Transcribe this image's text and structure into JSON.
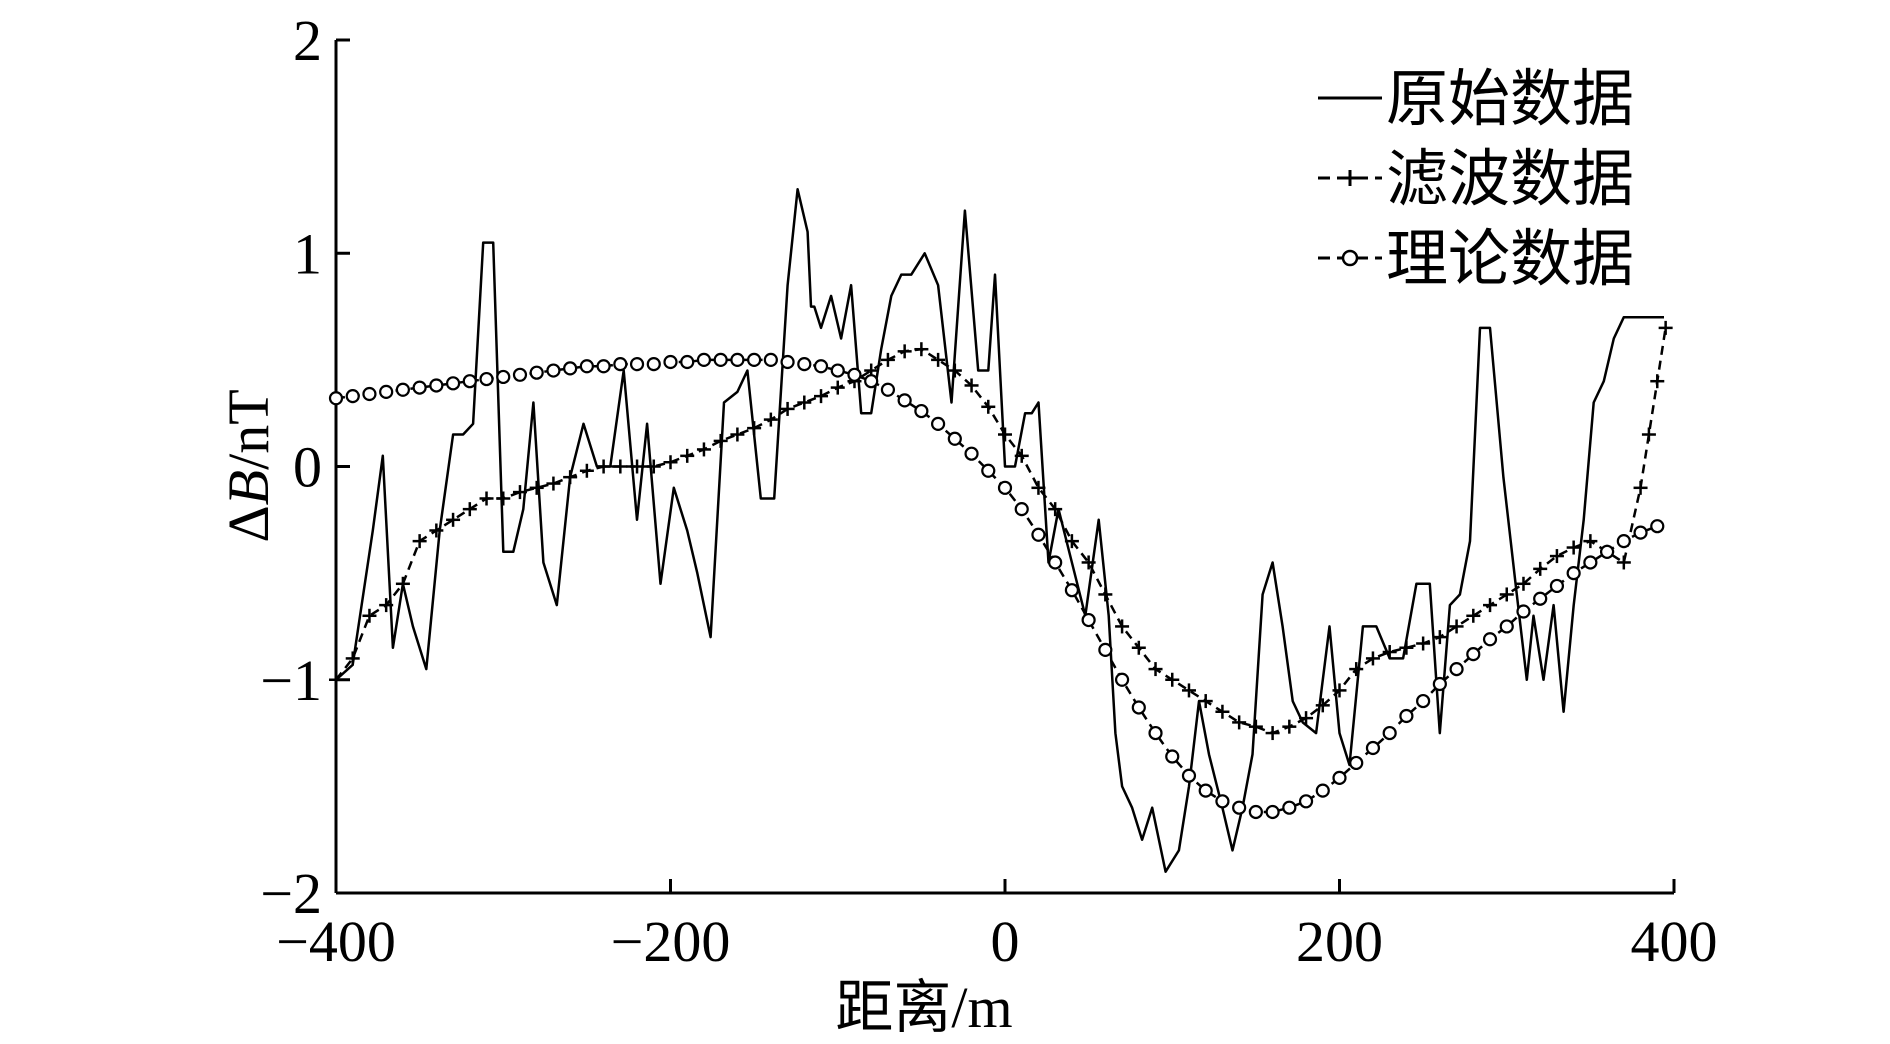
{
  "chart_data": {
    "type": "line",
    "xlabel": "距离/m",
    "ylabel_prefix": "Δ",
    "ylabel_var": "B",
    "ylabel_unit": "/nT",
    "xlim": [
      -400,
      400
    ],
    "ylim": [
      -2,
      2
    ],
    "x_ticks": [
      -400,
      -200,
      0,
      200,
      400
    ],
    "x_tick_labels": [
      "−400",
      "−200",
      "0",
      "200",
      "400"
    ],
    "y_ticks": [
      -2,
      -1,
      0,
      1,
      2
    ],
    "y_tick_labels": [
      "−2",
      "−1",
      "0",
      "1",
      "2"
    ],
    "grid": false,
    "legend_position": "top-right",
    "series": [
      {
        "name": "原始数据",
        "style": "solid",
        "marker": "none",
        "color": "#000000",
        "x": [
          -400,
          -390,
          -378,
          -372,
          -366,
          -360,
          -354,
          -346,
          -338,
          -330,
          -324,
          -318,
          -312,
          -306,
          -300,
          -294,
          -288,
          -282,
          -276,
          -268,
          -260,
          -252,
          -244,
          -236,
          -228,
          -220,
          -214,
          -206,
          -198,
          -190,
          -184,
          -176,
          -168,
          -160,
          -154,
          -146,
          -138,
          -130,
          -124,
          -118,
          -116,
          -114,
          -110,
          -104,
          -98,
          -92,
          -86,
          -80,
          -74,
          -68,
          -62,
          -56,
          -48,
          -40,
          -32,
          -24,
          -16,
          -10,
          -6,
          0,
          6,
          12,
          16,
          20,
          26,
          32,
          40,
          48,
          56,
          62,
          66,
          70,
          76,
          82,
          88,
          96,
          104,
          110,
          116,
          122,
          130,
          136,
          142,
          148,
          154,
          160,
          166,
          172,
          178,
          186,
          194,
          200,
          206,
          214,
          222,
          230,
          238,
          246,
          254,
          260,
          266,
          272,
          278,
          284,
          290,
          298,
          306,
          312,
          316,
          322,
          328,
          334,
          340,
          346,
          352,
          358,
          364,
          370,
          376,
          382,
          388,
          394
        ],
        "y": [
          -1.0,
          -0.93,
          -0.3,
          0.05,
          -0.85,
          -0.55,
          -0.75,
          -0.95,
          -0.3,
          0.15,
          0.15,
          0.2,
          1.05,
          1.05,
          -0.4,
          -0.4,
          -0.2,
          0.3,
          -0.45,
          -0.65,
          -0.05,
          0.2,
          0.0,
          0.0,
          0.45,
          -0.25,
          0.2,
          -0.55,
          -0.1,
          -0.3,
          -0.5,
          -0.8,
          0.3,
          0.35,
          0.45,
          -0.15,
          -0.15,
          0.85,
          1.3,
          1.1,
          0.75,
          0.75,
          0.65,
          0.8,
          0.6,
          0.85,
          0.25,
          0.25,
          0.55,
          0.8,
          0.9,
          0.9,
          1.0,
          0.85,
          0.3,
          1.2,
          0.45,
          0.45,
          0.9,
          0.0,
          0.0,
          0.25,
          0.25,
          0.3,
          -0.45,
          -0.2,
          -0.45,
          -0.7,
          -0.25,
          -0.7,
          -1.25,
          -1.5,
          -1.6,
          -1.75,
          -1.6,
          -1.9,
          -1.8,
          -1.5,
          -1.1,
          -1.35,
          -1.6,
          -1.8,
          -1.6,
          -1.35,
          -0.6,
          -0.45,
          -0.75,
          -1.1,
          -1.2,
          -1.25,
          -0.75,
          -1.25,
          -1.4,
          -0.75,
          -0.75,
          -0.9,
          -0.9,
          -0.55,
          -0.55,
          -1.25,
          -0.65,
          -0.6,
          -0.35,
          0.65,
          0.65,
          -0.05,
          -0.6,
          -1.0,
          -0.7,
          -1.0,
          -0.65,
          -1.15,
          -0.65,
          -0.25,
          0.3,
          0.4,
          0.6,
          0.7,
          0.7,
          0.7,
          0.7,
          0.7
        ]
      },
      {
        "name": "滤波数据",
        "style": "dashed",
        "marker": "plus",
        "color": "#000000",
        "x": [
          -400,
          -390,
          -380,
          -370,
          -360,
          -350,
          -340,
          -330,
          -320,
          -310,
          -300,
          -290,
          -280,
          -270,
          -260,
          -250,
          -240,
          -230,
          -220,
          -210,
          -200,
          -190,
          -180,
          -170,
          -160,
          -150,
          -140,
          -130,
          -120,
          -110,
          -100,
          -90,
          -80,
          -70,
          -60,
          -50,
          -40,
          -30,
          -20,
          -10,
          0,
          10,
          20,
          30,
          40,
          50,
          60,
          70,
          80,
          90,
          100,
          110,
          120,
          130,
          140,
          150,
          160,
          170,
          180,
          190,
          200,
          210,
          220,
          230,
          240,
          250,
          260,
          270,
          280,
          290,
          300,
          310,
          320,
          330,
          340,
          350,
          360,
          370,
          380,
          385,
          390,
          395
        ],
        "y": [
          -1.0,
          -0.9,
          -0.7,
          -0.65,
          -0.55,
          -0.35,
          -0.3,
          -0.25,
          -0.2,
          -0.15,
          -0.15,
          -0.12,
          -0.1,
          -0.08,
          -0.05,
          -0.02,
          0.0,
          0.0,
          0.0,
          0.0,
          0.02,
          0.05,
          0.08,
          0.12,
          0.15,
          0.18,
          0.22,
          0.27,
          0.3,
          0.33,
          0.37,
          0.4,
          0.45,
          0.5,
          0.54,
          0.55,
          0.5,
          0.45,
          0.38,
          0.28,
          0.15,
          0.05,
          -0.1,
          -0.2,
          -0.35,
          -0.45,
          -0.6,
          -0.75,
          -0.85,
          -0.95,
          -1.0,
          -1.05,
          -1.1,
          -1.15,
          -1.2,
          -1.22,
          -1.25,
          -1.22,
          -1.18,
          -1.12,
          -1.05,
          -0.95,
          -0.9,
          -0.87,
          -0.85,
          -0.83,
          -0.8,
          -0.75,
          -0.7,
          -0.65,
          -0.6,
          -0.55,
          -0.48,
          -0.42,
          -0.38,
          -0.35,
          -0.4,
          -0.45,
          -0.1,
          0.15,
          0.4,
          0.65
        ]
      },
      {
        "name": "理论数据",
        "style": "dashed",
        "marker": "circle",
        "color": "#000000",
        "x": [
          -400,
          -390,
          -380,
          -370,
          -360,
          -350,
          -340,
          -330,
          -320,
          -310,
          -300,
          -290,
          -280,
          -270,
          -260,
          -250,
          -240,
          -230,
          -220,
          -210,
          -200,
          -190,
          -180,
          -170,
          -160,
          -150,
          -140,
          -130,
          -120,
          -110,
          -100,
          -90,
          -80,
          -70,
          -60,
          -50,
          -40,
          -30,
          -20,
          -10,
          0,
          10,
          20,
          30,
          40,
          50,
          60,
          70,
          80,
          90,
          100,
          110,
          120,
          130,
          140,
          150,
          160,
          170,
          180,
          190,
          200,
          210,
          220,
          230,
          240,
          250,
          260,
          270,
          280,
          290,
          300,
          310,
          320,
          330,
          340,
          350,
          360,
          370,
          380,
          390
        ],
        "y": [
          0.32,
          0.33,
          0.34,
          0.35,
          0.36,
          0.37,
          0.38,
          0.39,
          0.4,
          0.41,
          0.42,
          0.43,
          0.44,
          0.45,
          0.46,
          0.47,
          0.47,
          0.48,
          0.48,
          0.48,
          0.49,
          0.49,
          0.5,
          0.5,
          0.5,
          0.5,
          0.5,
          0.49,
          0.48,
          0.47,
          0.45,
          0.43,
          0.4,
          0.36,
          0.31,
          0.26,
          0.2,
          0.13,
          0.06,
          -0.02,
          -0.1,
          -0.2,
          -0.32,
          -0.45,
          -0.58,
          -0.72,
          -0.86,
          -1.0,
          -1.13,
          -1.25,
          -1.36,
          -1.45,
          -1.52,
          -1.57,
          -1.6,
          -1.62,
          -1.62,
          -1.6,
          -1.57,
          -1.52,
          -1.46,
          -1.39,
          -1.32,
          -1.25,
          -1.17,
          -1.1,
          -1.02,
          -0.95,
          -0.88,
          -0.81,
          -0.75,
          -0.68,
          -0.62,
          -0.56,
          -0.5,
          -0.45,
          -0.4,
          -0.35,
          -0.31,
          -0.28
        ]
      }
    ]
  }
}
